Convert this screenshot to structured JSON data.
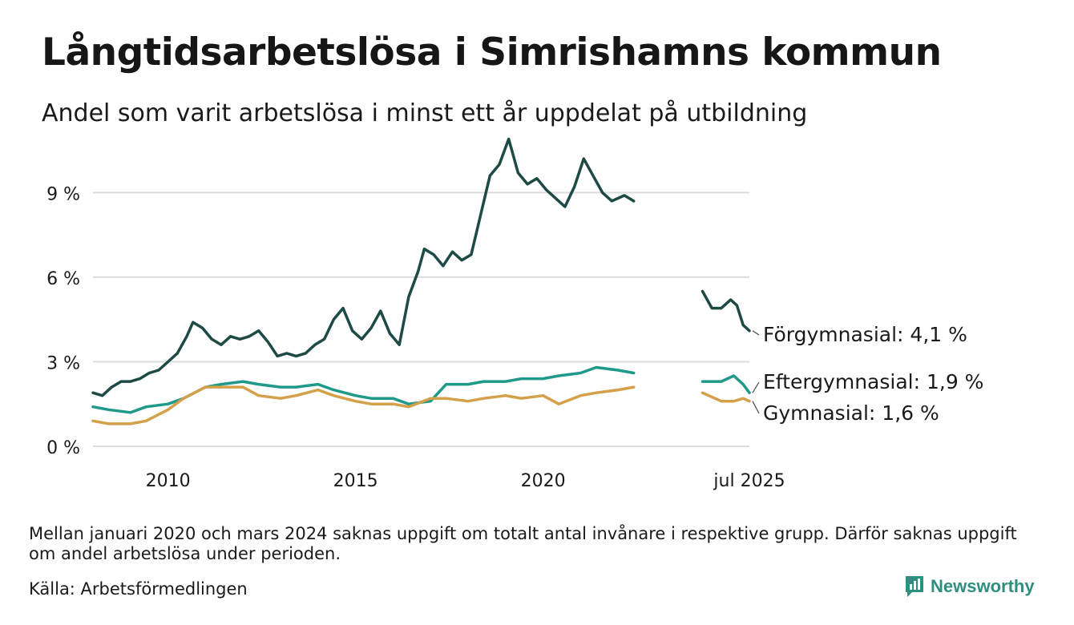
{
  "header": {
    "title": "Långtidsarbetslösa i Simrishamns kommun",
    "subtitle": "Andel som varit arbetslösa i minst ett år uppdelat på utbildning"
  },
  "footer": {
    "note": "Mellan januari 2020 och mars 2024 saknas uppgift om totalt antal invånare i respektive grupp. Därför saknas uppgift om andel arbetslösa under perioden.",
    "source": "Källa: Arbetsförmedlingen",
    "brand": "Newsworthy"
  },
  "colors": {
    "forgymnasial": "#1e4a45",
    "eftergymnasial": "#1f9a8a",
    "gymnasial": "#d4a04a",
    "grid": "#dcdcdc",
    "brand": "#2f8f7f"
  },
  "chart_data": {
    "type": "line",
    "title": "Långtidsarbetslösa i Simrishamns kommun",
    "subtitle": "Andel som varit arbetslösa i minst ett år uppdelat på utbildning",
    "y_unit": "%",
    "ylim": [
      0,
      11
    ],
    "xlim": [
      "2008-01",
      "2025-07"
    ],
    "grid": true,
    "y_ticks": [
      0,
      3,
      6,
      9
    ],
    "y_tick_labels": [
      "0 %",
      "3 %",
      "6 %",
      "9 %"
    ],
    "x_ticks": [
      "2010-01",
      "2015-01",
      "2020-01",
      "2025-07"
    ],
    "x_tick_labels": [
      "2010",
      "2015",
      "2020",
      "jul 2025"
    ],
    "series": [
      {
        "name": "Förgymnasial",
        "label": "Förgymnasial: 4,1 %",
        "color": "#1e4a45",
        "segments": [
          [
            [
              "2008-01",
              1.9
            ],
            [
              "2008-04",
              1.8
            ],
            [
              "2008-07",
              2.1
            ],
            [
              "2008-10",
              2.3
            ],
            [
              "2009-01",
              2.3
            ],
            [
              "2009-04",
              2.4
            ],
            [
              "2009-07",
              2.6
            ],
            [
              "2009-10",
              2.7
            ],
            [
              "2010-01",
              3.0
            ],
            [
              "2010-04",
              3.3
            ],
            [
              "2010-07",
              3.9
            ],
            [
              "2010-09",
              4.4
            ],
            [
              "2010-12",
              4.2
            ],
            [
              "2011-03",
              3.8
            ],
            [
              "2011-06",
              3.6
            ],
            [
              "2011-09",
              3.9
            ],
            [
              "2011-12",
              3.8
            ],
            [
              "2012-03",
              3.9
            ],
            [
              "2012-06",
              4.1
            ],
            [
              "2012-09",
              3.7
            ],
            [
              "2012-12",
              3.2
            ],
            [
              "2013-03",
              3.3
            ],
            [
              "2013-06",
              3.2
            ],
            [
              "2013-09",
              3.3
            ],
            [
              "2013-12",
              3.6
            ],
            [
              "2014-03",
              3.8
            ],
            [
              "2014-06",
              4.5
            ],
            [
              "2014-09",
              4.9
            ],
            [
              "2014-12",
              4.1
            ],
            [
              "2015-03",
              3.8
            ],
            [
              "2015-06",
              4.2
            ],
            [
              "2015-09",
              4.8
            ],
            [
              "2015-12",
              4.0
            ],
            [
              "2016-03",
              3.6
            ],
            [
              "2016-06",
              5.3
            ],
            [
              "2016-09",
              6.2
            ],
            [
              "2016-11",
              7.0
            ],
            [
              "2017-02",
              6.8
            ],
            [
              "2017-05",
              6.4
            ],
            [
              "2017-08",
              6.9
            ],
            [
              "2017-11",
              6.6
            ],
            [
              "2018-02",
              6.8
            ],
            [
              "2018-05",
              8.2
            ],
            [
              "2018-08",
              9.6
            ],
            [
              "2018-11",
              10.0
            ],
            [
              "2019-02",
              10.9
            ],
            [
              "2019-05",
              9.7
            ],
            [
              "2019-08",
              9.3
            ],
            [
              "2019-11",
              9.5
            ],
            [
              "2020-02",
              9.1
            ],
            [
              "2020-05",
              8.8
            ],
            [
              "2020-08",
              8.5
            ],
            [
              "2020-11",
              9.2
            ],
            [
              "2021-02",
              10.2
            ],
            [
              "2021-05",
              9.6
            ],
            [
              "2021-08",
              9.0
            ],
            [
              "2021-11",
              8.7
            ],
            [
              "2022-03",
              8.9
            ],
            [
              "2022-06",
              8.7
            ]
          ],
          [
            [
              "2024-04",
              5.5
            ],
            [
              "2024-07",
              4.9
            ],
            [
              "2024-10",
              4.9
            ],
            [
              "2025-01",
              5.2
            ],
            [
              "2025-03",
              5.0
            ],
            [
              "2025-05",
              4.3
            ],
            [
              "2025-07",
              4.1
            ]
          ]
        ]
      },
      {
        "name": "Eftergymnasial",
        "label": "Eftergymnasial: 1,9 %",
        "color": "#1f9a8a",
        "segments": [
          [
            [
              "2008-01",
              1.4
            ],
            [
              "2008-06",
              1.3
            ],
            [
              "2009-01",
              1.2
            ],
            [
              "2009-06",
              1.4
            ],
            [
              "2010-01",
              1.5
            ],
            [
              "2010-06",
              1.7
            ],
            [
              "2011-01",
              2.1
            ],
            [
              "2011-06",
              2.2
            ],
            [
              "2012-01",
              2.3
            ],
            [
              "2012-06",
              2.2
            ],
            [
              "2013-01",
              2.1
            ],
            [
              "2013-06",
              2.1
            ],
            [
              "2014-01",
              2.2
            ],
            [
              "2014-06",
              2.0
            ],
            [
              "2015-01",
              1.8
            ],
            [
              "2015-06",
              1.7
            ],
            [
              "2016-01",
              1.7
            ],
            [
              "2016-06",
              1.5
            ],
            [
              "2017-01",
              1.6
            ],
            [
              "2017-06",
              2.2
            ],
            [
              "2018-01",
              2.2
            ],
            [
              "2018-06",
              2.3
            ],
            [
              "2019-01",
              2.3
            ],
            [
              "2019-06",
              2.4
            ],
            [
              "2020-01",
              2.4
            ],
            [
              "2020-06",
              2.5
            ],
            [
              "2021-01",
              2.6
            ],
            [
              "2021-06",
              2.8
            ],
            [
              "2022-01",
              2.7
            ],
            [
              "2022-06",
              2.6
            ]
          ],
          [
            [
              "2024-04",
              2.3
            ],
            [
              "2024-10",
              2.3
            ],
            [
              "2025-02",
              2.5
            ],
            [
              "2025-05",
              2.2
            ],
            [
              "2025-07",
              1.9
            ]
          ]
        ]
      },
      {
        "name": "Gymnasial",
        "label": "Gymnasial: 1,6 %",
        "color": "#d4a04a",
        "segments": [
          [
            [
              "2008-01",
              0.9
            ],
            [
              "2008-06",
              0.8
            ],
            [
              "2009-01",
              0.8
            ],
            [
              "2009-06",
              0.9
            ],
            [
              "2010-01",
              1.3
            ],
            [
              "2010-06",
              1.7
            ],
            [
              "2011-01",
              2.1
            ],
            [
              "2011-06",
              2.1
            ],
            [
              "2012-01",
              2.1
            ],
            [
              "2012-06",
              1.8
            ],
            [
              "2013-01",
              1.7
            ],
            [
              "2013-06",
              1.8
            ],
            [
              "2014-01",
              2.0
            ],
            [
              "2014-06",
              1.8
            ],
            [
              "2015-01",
              1.6
            ],
            [
              "2015-06",
              1.5
            ],
            [
              "2016-01",
              1.5
            ],
            [
              "2016-06",
              1.4
            ],
            [
              "2017-01",
              1.7
            ],
            [
              "2017-06",
              1.7
            ],
            [
              "2018-01",
              1.6
            ],
            [
              "2018-06",
              1.7
            ],
            [
              "2019-01",
              1.8
            ],
            [
              "2019-06",
              1.7
            ],
            [
              "2020-01",
              1.8
            ],
            [
              "2020-06",
              1.5
            ],
            [
              "2021-01",
              1.8
            ],
            [
              "2021-06",
              1.9
            ],
            [
              "2022-01",
              2.0
            ],
            [
              "2022-06",
              2.1
            ]
          ],
          [
            [
              "2024-04",
              1.9
            ],
            [
              "2024-10",
              1.6
            ],
            [
              "2025-02",
              1.6
            ],
            [
              "2025-05",
              1.7
            ],
            [
              "2025-07",
              1.6
            ]
          ]
        ]
      }
    ]
  }
}
